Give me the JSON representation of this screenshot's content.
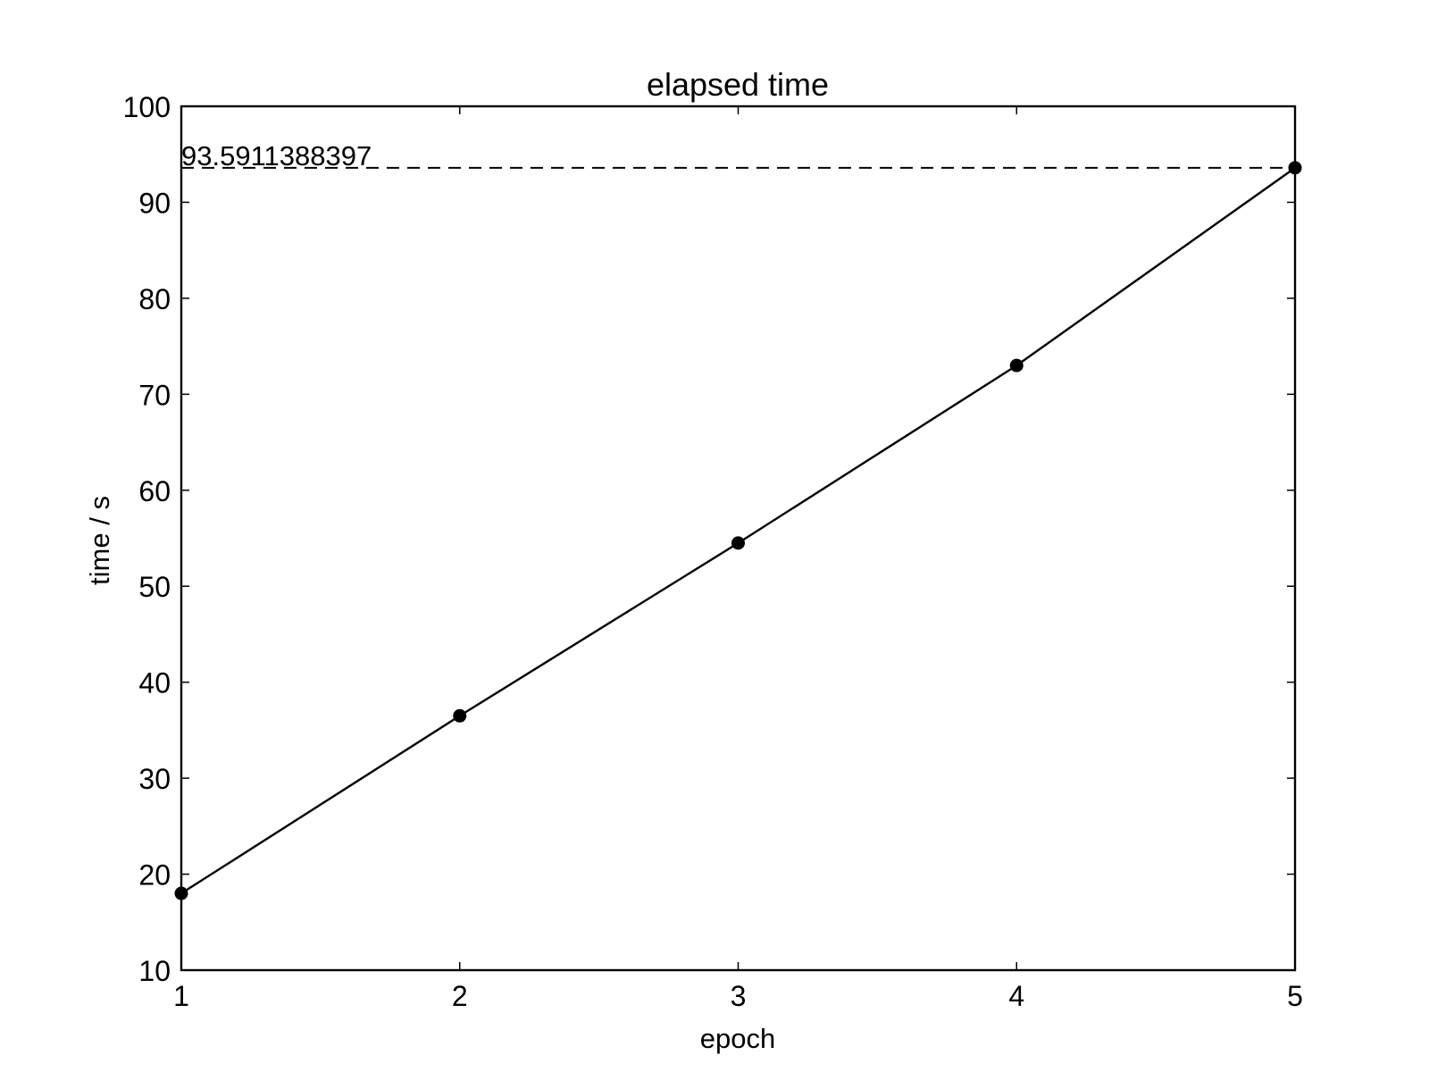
{
  "chart_data": {
    "type": "line",
    "title": "elapsed time",
    "xlabel": "epoch",
    "ylabel": "time / s",
    "xlim": [
      1,
      5
    ],
    "ylim": [
      10,
      100
    ],
    "xticks": [
      1,
      2,
      3,
      4,
      5
    ],
    "yticks": [
      10,
      20,
      30,
      40,
      50,
      60,
      70,
      80,
      90,
      100
    ],
    "grid": false,
    "series": [
      {
        "x": [
          1,
          2,
          3,
          4,
          5
        ],
        "values": [
          18.0,
          36.5,
          54.5,
          73.0,
          93.5911388397
        ],
        "color": "#000000",
        "marker": "circle"
      }
    ],
    "reference_line": {
      "y": 93.5911388397,
      "style": "dashed",
      "label": "93.5911388397"
    }
  }
}
